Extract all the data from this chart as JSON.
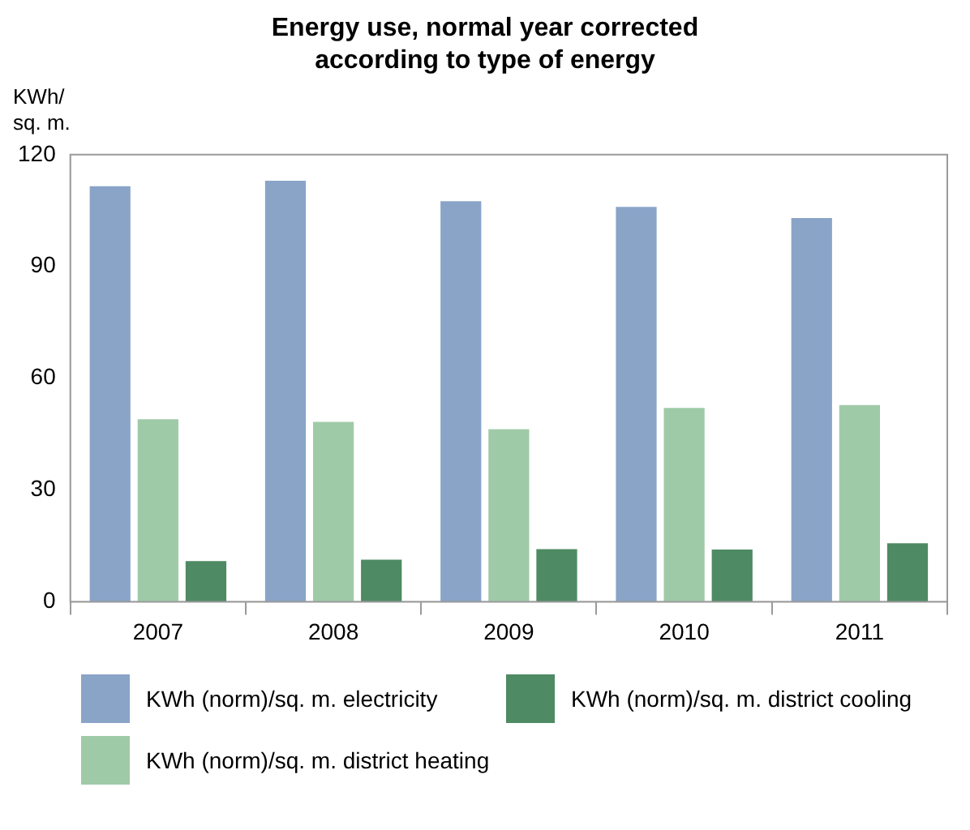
{
  "chart_data": {
    "type": "bar",
    "title": "Energy use, normal year corrected according to type of energy",
    "ylabel": "KWh/ sq. m.",
    "categories": [
      "2007",
      "2008",
      "2009",
      "2010",
      "2011"
    ],
    "series": [
      {
        "name": "KWh (norm)/sq. m. electricity",
        "color": "#8aa4c8",
        "values": [
          111.5,
          113,
          107.5,
          106,
          103
        ]
      },
      {
        "name": "KWh (norm)/sq. m. district heating",
        "color": "#9fcaa8",
        "values": [
          49,
          48.3,
          46.3,
          52,
          52.8
        ]
      },
      {
        "name": "KWh (norm)/sq. m. district cooling",
        "color": "#4e8a63",
        "values": [
          10.9,
          11.3,
          14.1,
          14,
          15.7
        ]
      }
    ],
    "ylim": [
      0,
      120
    ],
    "yticks": [
      0,
      30,
      60,
      90,
      120
    ],
    "grid": false,
    "legend": "bottom"
  }
}
